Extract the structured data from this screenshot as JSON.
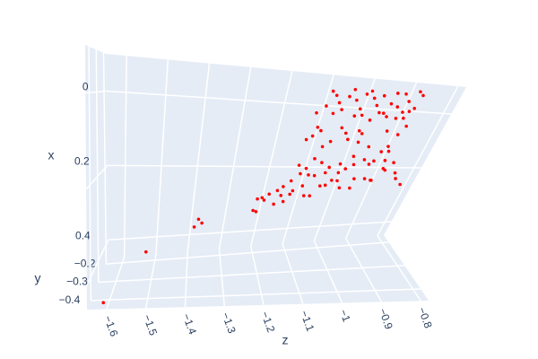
{
  "chart_data": {
    "type": "scatter3d",
    "x_title": "x",
    "y_title": "y",
    "z_title": "z",
    "xlim": [
      -0.1,
      0.45
    ],
    "x_reversed": true,
    "xticks": [
      0,
      0.2,
      0.4
    ],
    "ylim": [
      -0.45,
      -0.17
    ],
    "yticks": [
      {
        "value": -0.2,
        "label": "−0.2"
      },
      {
        "value": -0.3,
        "label": "−0.3"
      },
      {
        "value": -0.4,
        "label": "−0.4"
      }
    ],
    "zlim": [
      -1.65,
      -0.78
    ],
    "zticks": [
      {
        "value": -1.6,
        "label": "−1.6"
      },
      {
        "value": -1.5,
        "label": "−1.5"
      },
      {
        "value": -1.4,
        "label": "−1.4"
      },
      {
        "value": -1.3,
        "label": "−1.3"
      },
      {
        "value": -1.2,
        "label": "−1.2"
      },
      {
        "value": -1.1,
        "label": "−1.1"
      },
      {
        "value": -1,
        "label": "−1"
      },
      {
        "value": -0.9,
        "label": "−0.9"
      },
      {
        "value": -0.8,
        "label": "−0.8"
      }
    ],
    "grid": true,
    "wall_color": "#e5ecf6",
    "series": [
      {
        "color": "#ff0000",
        "x": [
          -0.05,
          -0.04,
          -0.02,
          -0.04,
          -0.06,
          -0.03,
          -0.01,
          -0.05,
          -0.06,
          -0.04,
          -0.02,
          -0.05,
          0.0,
          -0.03,
          -0.06,
          -0.02,
          -0.01,
          -0.06,
          -0.04,
          -0.01,
          -0.02,
          -0.07,
          -0.06,
          -0.01,
          0.01,
          0.0,
          0.01,
          0.01,
          0.02,
          0.0,
          0.01,
          0.01,
          0.01,
          0.01,
          0.05,
          0.09,
          0.07,
          0.06,
          0.1,
          0.09,
          0.05,
          0.06,
          0.08,
          0.05,
          0.06,
          0.09,
          0.09,
          0.05,
          0.09,
          0.11,
          0.06,
          0.03,
          0.11,
          0.15,
          0.16,
          0.14,
          0.13,
          0.17,
          0.18,
          0.14,
          0.15,
          0.13,
          0.15,
          0.12,
          0.16,
          0.18,
          0.14,
          0.16,
          0.17,
          0.15,
          0.14,
          0.16,
          0.18,
          0.15,
          0.18,
          0.19,
          0.2,
          0.21,
          0.19,
          0.2,
          0.22,
          0.21,
          0.19,
          0.18,
          0.19,
          0.2,
          0.19,
          0.2,
          0.21,
          0.23,
          0.24,
          0.24,
          0.25,
          0.27,
          0.28,
          0.26,
          0.25,
          0.24,
          0.23,
          0.23,
          0.21,
          0.24,
          0.23,
          0.26,
          0.39,
          0.33,
          0.31,
          0.32,
          0.44
        ],
        "y": [
          -0.29,
          -0.32,
          -0.3,
          -0.33,
          -0.31,
          -0.28,
          -0.34,
          -0.3,
          -0.32,
          -0.29,
          -0.29,
          -0.32,
          -0.3,
          -0.33,
          -0.31,
          -0.28,
          -0.34,
          -0.3,
          -0.32,
          -0.29,
          -0.29,
          -0.32,
          -0.3,
          -0.33,
          -0.31,
          -0.28,
          -0.34,
          -0.3,
          -0.32,
          -0.29,
          -0.29,
          -0.32,
          -0.3,
          -0.33,
          -0.31,
          -0.28,
          -0.34,
          -0.3,
          -0.32,
          -0.29,
          -0.29,
          -0.32,
          -0.3,
          -0.33,
          -0.31,
          -0.28,
          -0.34,
          -0.3,
          -0.32,
          -0.29,
          -0.29,
          -0.32,
          -0.3,
          -0.33,
          -0.31,
          -0.28,
          -0.34,
          -0.3,
          -0.32,
          -0.29,
          -0.29,
          -0.32,
          -0.3,
          -0.33,
          -0.31,
          -0.28,
          -0.34,
          -0.3,
          -0.32,
          -0.29,
          -0.29,
          -0.32,
          -0.3,
          -0.33,
          -0.31,
          -0.28,
          -0.34,
          -0.3,
          -0.32,
          -0.29,
          -0.29,
          -0.32,
          -0.3,
          -0.33,
          -0.31,
          -0.28,
          -0.34,
          -0.3,
          -0.32,
          -0.29,
          -0.29,
          -0.32,
          -0.3,
          -0.33,
          -0.31,
          -0.28,
          -0.34,
          -0.3,
          -0.32,
          -0.29,
          -0.31,
          -0.3,
          -0.33,
          -0.29,
          -0.28,
          -0.28,
          -0.28,
          -0.28,
          -0.44
        ],
        "z": [
          -1.09,
          -1.08,
          -1.07,
          -1.05,
          -1.04,
          -1.03,
          -1.02,
          -1.01,
          -1.0,
          -0.99,
          -0.98,
          -0.97,
          -0.96,
          -0.95,
          -0.94,
          -0.93,
          -0.92,
          -0.92,
          -0.91,
          -0.9,
          -0.89,
          -0.89,
          -0.88,
          -1.1,
          -1.08,
          -1.06,
          -1.03,
          -1.01,
          -0.99,
          -0.97,
          -0.95,
          -0.93,
          -0.91,
          -1.12,
          -1.11,
          -1.13,
          -1.12,
          -1.1,
          -1.09,
          -1.07,
          -1.05,
          -1.04,
          -1.03,
          -1.01,
          -1.0,
          -1.0,
          -0.98,
          -0.94,
          -0.93,
          -0.92,
          -0.91,
          -0.9,
          -0.94,
          -0.93,
          -0.92,
          -0.92,
          -0.91,
          -0.89,
          -0.89,
          -0.95,
          -0.96,
          -0.98,
          -1.0,
          -1.01,
          -1.02,
          -1.03,
          -1.04,
          -1.06,
          -1.07,
          -1.08,
          -1.1,
          -1.12,
          -1.13,
          -1.14,
          -1.11,
          -1.09,
          -1.08,
          -1.06,
          -1.05,
          -1.03,
          -1.02,
          -1.0,
          -0.99,
          -0.97,
          -0.95,
          -0.94,
          -0.88,
          -1.15,
          -1.17,
          -1.18,
          -1.2,
          -1.22,
          -1.23,
          -1.24,
          -1.23,
          -1.21,
          -1.19,
          -1.17,
          -1.15,
          -1.14,
          -1.12,
          -1.11,
          -1.1,
          -1.16,
          -1.52,
          -1.39,
          -1.38,
          -1.37,
          -1.61
        ]
      }
    ]
  }
}
